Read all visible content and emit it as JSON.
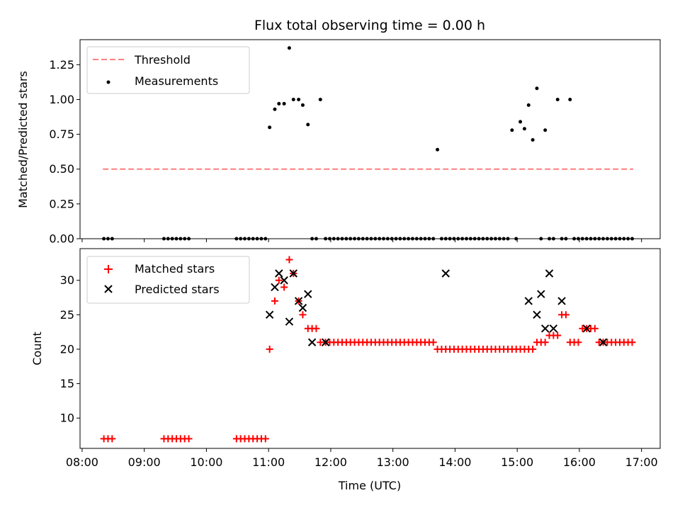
{
  "chart_data": [
    {
      "type": "scatter",
      "title": "Flux total observing time = 0.00 h",
      "xlabel": "",
      "ylabel": "Matched/Predicted stars",
      "ylim": [
        0,
        1.43
      ],
      "xlim": [
        "07:58",
        "17:18"
      ],
      "y_ticks": [
        "0.00",
        "0.25",
        "0.50",
        "0.75",
        "1.00",
        "1.25"
      ],
      "y_tick_values": [
        0,
        0.25,
        0.5,
        0.75,
        1.0,
        1.25
      ],
      "legend_position": "upper-left",
      "threshold": {
        "name": "Threshold",
        "value": 0.5,
        "x_start": "08:20",
        "x_end": "16:52",
        "color": "#ff7f7f",
        "style": "dashed"
      },
      "series": [
        {
          "name": "Measurements",
          "color": "#000000",
          "marker": "dot",
          "x": [
            "08:21",
            "08:25",
            "08:29",
            "09:19",
            "09:23",
            "09:27",
            "09:31",
            "09:35",
            "09:39",
            "09:43",
            "10:29",
            "10:33",
            "10:37",
            "10:41",
            "10:45",
            "10:49",
            "10:53",
            "10:57",
            "11:01",
            "11:06",
            "11:10",
            "11:15",
            "11:20",
            "11:24",
            "11:29",
            "11:33",
            "11:38",
            "11:42",
            "11:46",
            "11:50",
            "11:55",
            "11:59",
            "12:03",
            "12:07",
            "12:11",
            "12:15",
            "12:19",
            "12:23",
            "12:27",
            "12:31",
            "12:35",
            "12:39",
            "12:43",
            "12:47",
            "12:51",
            "12:55",
            "12:59",
            "13:03",
            "13:07",
            "13:11",
            "13:15",
            "13:19",
            "13:23",
            "13:27",
            "13:31",
            "13:35",
            "13:39",
            "13:43",
            "13:47",
            "13:51",
            "13:55",
            "13:59",
            "14:03",
            "14:07",
            "14:11",
            "14:15",
            "14:19",
            "14:23",
            "14:27",
            "14:31",
            "14:35",
            "14:39",
            "14:43",
            "14:47",
            "14:51",
            "14:55",
            "14:59",
            "15:03",
            "15:07",
            "15:11",
            "15:15",
            "15:19",
            "15:23",
            "15:27",
            "15:31",
            "15:35",
            "15:39",
            "15:43",
            "15:47",
            "15:51",
            "15:55",
            "15:59",
            "16:03",
            "16:07",
            "16:11",
            "16:15",
            "16:19",
            "16:23",
            "16:27",
            "16:31",
            "16:35",
            "16:39",
            "16:43",
            "16:47",
            "16:51"
          ],
          "y": [
            0,
            0,
            0,
            0,
            0,
            0,
            0,
            0,
            0,
            0,
            0,
            0,
            0,
            0,
            0,
            0,
            0,
            0,
            0.8,
            0.93,
            0.97,
            0.97,
            1.37,
            1.0,
            1.0,
            0.96,
            0.82,
            0,
            0,
            1.0,
            0,
            0,
            0,
            0,
            0,
            0,
            0,
            0,
            0,
            0,
            0,
            0,
            0,
            0,
            0,
            0,
            0,
            0,
            0,
            0,
            0,
            0,
            0,
            0,
            0,
            0,
            0,
            0.64,
            0,
            0,
            0,
            0,
            0,
            0,
            0,
            0,
            0,
            0,
            0,
            0,
            0,
            0,
            0,
            0,
            0,
            0.78,
            0,
            0.84,
            0.79,
            0.96,
            0.71,
            1.08,
            0,
            0.78,
            0,
            0,
            1.0,
            0,
            0,
            1.0,
            0,
            0,
            0,
            0,
            0,
            0,
            0,
            0,
            0,
            0,
            0,
            0,
            0,
            0,
            0
          ]
        }
      ]
    },
    {
      "type": "scatter",
      "title": "",
      "xlabel": "Time (UTC)",
      "ylabel": "Count",
      "ylim": [
        5.6,
        34.6
      ],
      "xlim": [
        "07:58",
        "17:18"
      ],
      "x_ticks": [
        "08:00",
        "09:00",
        "10:00",
        "11:00",
        "12:00",
        "13:00",
        "14:00",
        "15:00",
        "16:00",
        "17:00"
      ],
      "y_ticks": [
        "10",
        "15",
        "20",
        "25",
        "30"
      ],
      "y_tick_values": [
        10,
        15,
        20,
        25,
        30
      ],
      "legend_position": "upper-left",
      "series": [
        {
          "name": "Matched stars",
          "color": "#ff0000",
          "marker": "plus",
          "x": [
            "08:21",
            "08:25",
            "08:29",
            "09:19",
            "09:23",
            "09:27",
            "09:31",
            "09:35",
            "09:39",
            "09:43",
            "10:29",
            "10:33",
            "10:37",
            "10:41",
            "10:45",
            "10:49",
            "10:53",
            "10:57",
            "11:01",
            "11:06",
            "11:10",
            "11:15",
            "11:20",
            "11:24",
            "11:29",
            "11:33",
            "11:38",
            "11:42",
            "11:46",
            "11:50",
            "11:55",
            "11:59",
            "12:03",
            "12:07",
            "12:11",
            "12:15",
            "12:19",
            "12:23",
            "12:27",
            "12:31",
            "12:35",
            "12:39",
            "12:43",
            "12:47",
            "12:51",
            "12:55",
            "12:59",
            "13:03",
            "13:07",
            "13:11",
            "13:15",
            "13:19",
            "13:23",
            "13:27",
            "13:31",
            "13:35",
            "13:39",
            "13:43",
            "13:47",
            "13:51",
            "13:55",
            "13:59",
            "14:03",
            "14:07",
            "14:11",
            "14:15",
            "14:19",
            "14:23",
            "14:27",
            "14:31",
            "14:35",
            "14:39",
            "14:43",
            "14:47",
            "14:51",
            "14:55",
            "14:59",
            "15:03",
            "15:07",
            "15:11",
            "15:15",
            "15:19",
            "15:23",
            "15:27",
            "15:31",
            "15:35",
            "15:39",
            "15:43",
            "15:47",
            "15:51",
            "15:55",
            "15:59",
            "16:03",
            "16:07",
            "16:11",
            "16:15",
            "16:19",
            "16:23",
            "16:27",
            "16:31",
            "16:35",
            "16:39",
            "16:43",
            "16:47",
            "16:51"
          ],
          "y": [
            7,
            7,
            7,
            7,
            7,
            7,
            7,
            7,
            7,
            7,
            7,
            7,
            7,
            7,
            7,
            7,
            7,
            7,
            20,
            27,
            30,
            29,
            33,
            31,
            27,
            25,
            23,
            23,
            23,
            21,
            21,
            21,
            21,
            21,
            21,
            21,
            21,
            21,
            21,
            21,
            21,
            21,
            21,
            21,
            21,
            21,
            21,
            21,
            21,
            21,
            21,
            21,
            21,
            21,
            21,
            21,
            21,
            20,
            20,
            20,
            20,
            20,
            20,
            20,
            20,
            20,
            20,
            20,
            20,
            20,
            20,
            20,
            20,
            20,
            20,
            20,
            20,
            20,
            20,
            20,
            20,
            21,
            21,
            21,
            22,
            22,
            22,
            25,
            25,
            21,
            21,
            21,
            23,
            23,
            23,
            23,
            21,
            21,
            21,
            21,
            21,
            21,
            21,
            21,
            21
          ]
        },
        {
          "name": "Predicted stars",
          "color": "#000000",
          "marker": "x",
          "x": [
            "11:01",
            "11:06",
            "11:10",
            "11:15",
            "11:20",
            "11:24",
            "11:29",
            "11:33",
            "11:38",
            "11:42",
            "11:55",
            "13:51",
            "15:11",
            "15:19",
            "15:23",
            "15:27",
            "15:31",
            "15:35",
            "15:43",
            "16:07",
            "16:23"
          ],
          "y": [
            25,
            29,
            31,
            30,
            24,
            31,
            27,
            26,
            28,
            21,
            21,
            31,
            27,
            25,
            28,
            23,
            31,
            23,
            27,
            23,
            21
          ]
        }
      ]
    }
  ]
}
